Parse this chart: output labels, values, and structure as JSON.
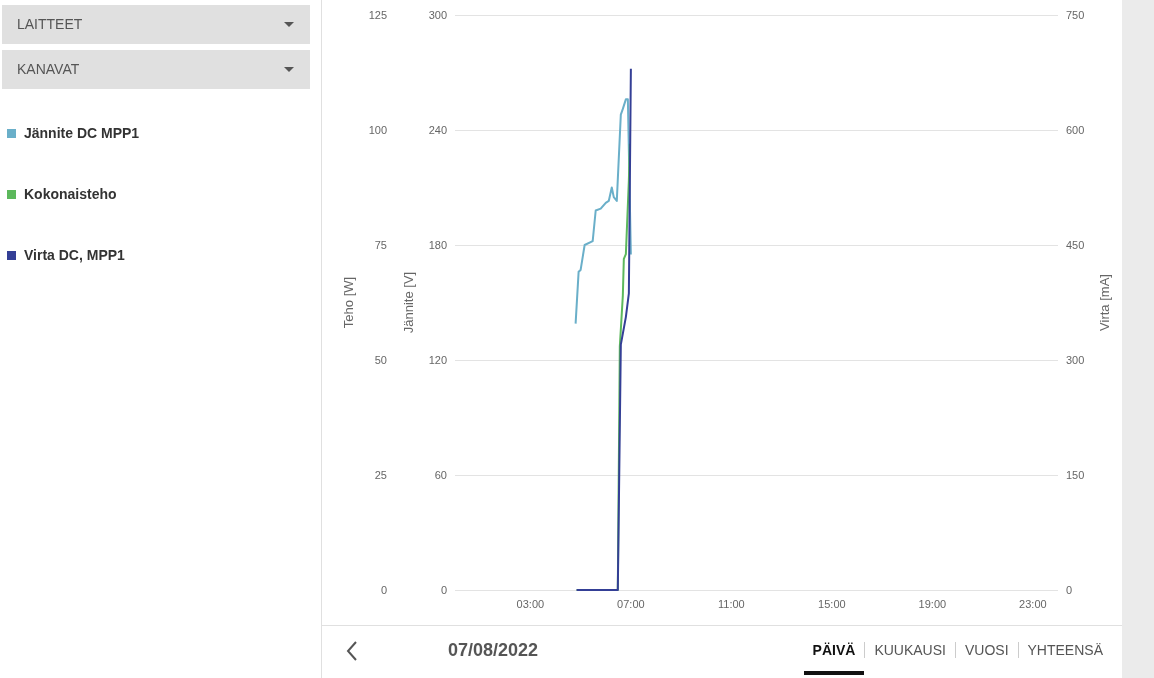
{
  "chart_data": {
    "type": "line",
    "ylabel": "Jännite [V]",
    "y2label": "Virta [mA]",
    "y3label": "Teho [W]",
    "xlim": [
      0,
      24
    ],
    "xticks": [
      {
        "value": 3,
        "label": "03:00"
      },
      {
        "value": 7,
        "label": "07:00"
      },
      {
        "value": 11,
        "label": "11:00"
      },
      {
        "value": 15,
        "label": "15:00"
      },
      {
        "value": 19,
        "label": "19:00"
      },
      {
        "value": 23,
        "label": "23:00"
      }
    ],
    "ylim": [
      0,
      300
    ],
    "yticks": [
      0,
      60,
      120,
      180,
      240,
      300
    ],
    "y2lim": [
      0,
      750
    ],
    "y2ticks": [
      0,
      150,
      300,
      450,
      600,
      750
    ],
    "y3lim": [
      0,
      125
    ],
    "y3ticks": [
      0,
      25,
      50,
      75,
      100,
      125
    ],
    "grid": "y",
    "legend": "left",
    "marker": "none",
    "line_style": "solid",
    "series": [
      {
        "name": "Jännite DC MPP1",
        "color": "#6aafc9",
        "x": [
          4.8,
          4.92,
          5,
          5.16,
          5.48,
          5.6,
          5.8,
          6,
          6.12,
          6.24,
          6.32,
          6.44,
          6.6,
          6.68,
          6.8,
          6.88,
          7
        ],
        "values": [
          139,
          166,
          167,
          180,
          182,
          198,
          199,
          202,
          203,
          210,
          205,
          203,
          248,
          251,
          256,
          256,
          175
        ]
      },
      {
        "name": "Kokonaisteho",
        "color": "#5cb85c",
        "axis": "y3",
        "x": [
          4.84,
          6.48,
          6.56,
          6.68,
          6.72,
          6.8,
          6.92,
          6.96
        ],
        "values": [
          0,
          0,
          53,
          64,
          72,
          73,
          89,
          97
        ]
      },
      {
        "name": "Virta DC, MPP1",
        "color": "#343f96",
        "axis": "y2",
        "x": [
          4.84,
          6.48,
          6.6,
          6.8,
          6.92,
          7
        ],
        "values": [
          0,
          0,
          320,
          356,
          387,
          680
        ]
      }
    ],
    "annotations": [
      "LAITTEET",
      "KANAVAT",
      "07/08/2022",
      "PÄIVÄ",
      "KUUKAUSI",
      "VUOSI",
      "YHTEENSÄ"
    ]
  }
}
